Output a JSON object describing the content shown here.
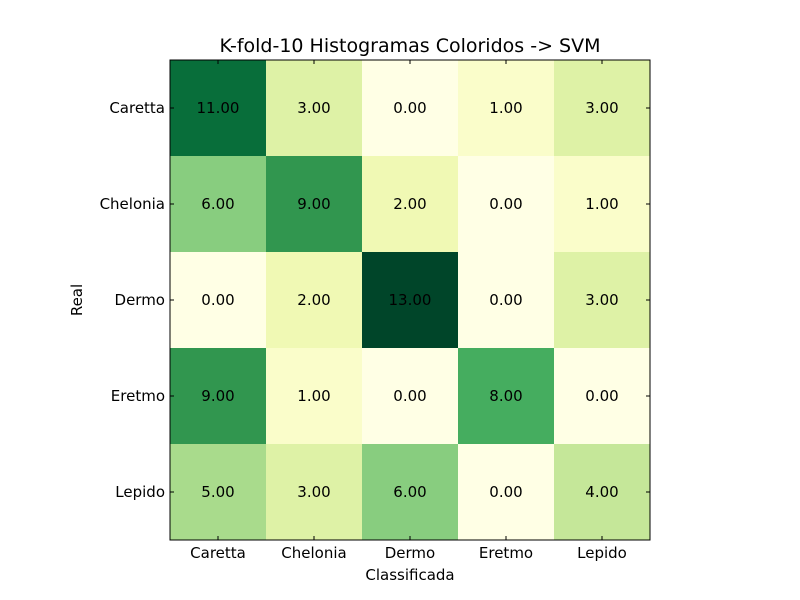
{
  "chart_data": {
    "type": "heatmap",
    "title": "K-fold-10 Histogramas Coloridos -> SVM",
    "xlabel": "Classificada",
    "ylabel": "Real",
    "x_categories": [
      "Caretta",
      "Chelonia",
      "Dermo",
      "Eretmo",
      "Lepido"
    ],
    "y_categories": [
      "Caretta",
      "Chelonia",
      "Dermo",
      "Eretmo",
      "Lepido"
    ],
    "values": [
      [
        11,
        3,
        0,
        1,
        3
      ],
      [
        6,
        9,
        2,
        0,
        1
      ],
      [
        0,
        2,
        13,
        0,
        3
      ],
      [
        9,
        1,
        0,
        8,
        0
      ],
      [
        5,
        3,
        6,
        0,
        4
      ]
    ],
    "value_labels": [
      [
        "11.00",
        "3.00",
        "0.00",
        "1.00",
        "3.00"
      ],
      [
        "6.00",
        "9.00",
        "2.00",
        "0.00",
        "1.00"
      ],
      [
        "0.00",
        "2.00",
        "13.00",
        "0.00",
        "3.00"
      ],
      [
        "9.00",
        "1.00",
        "0.00",
        "8.00",
        "0.00"
      ],
      [
        "5.00",
        "3.00",
        "6.00",
        "0.00",
        "4.00"
      ]
    ],
    "colormap": "YlGn",
    "color_range": [
      0,
      13
    ],
    "colorbar": false,
    "grid": false
  }
}
